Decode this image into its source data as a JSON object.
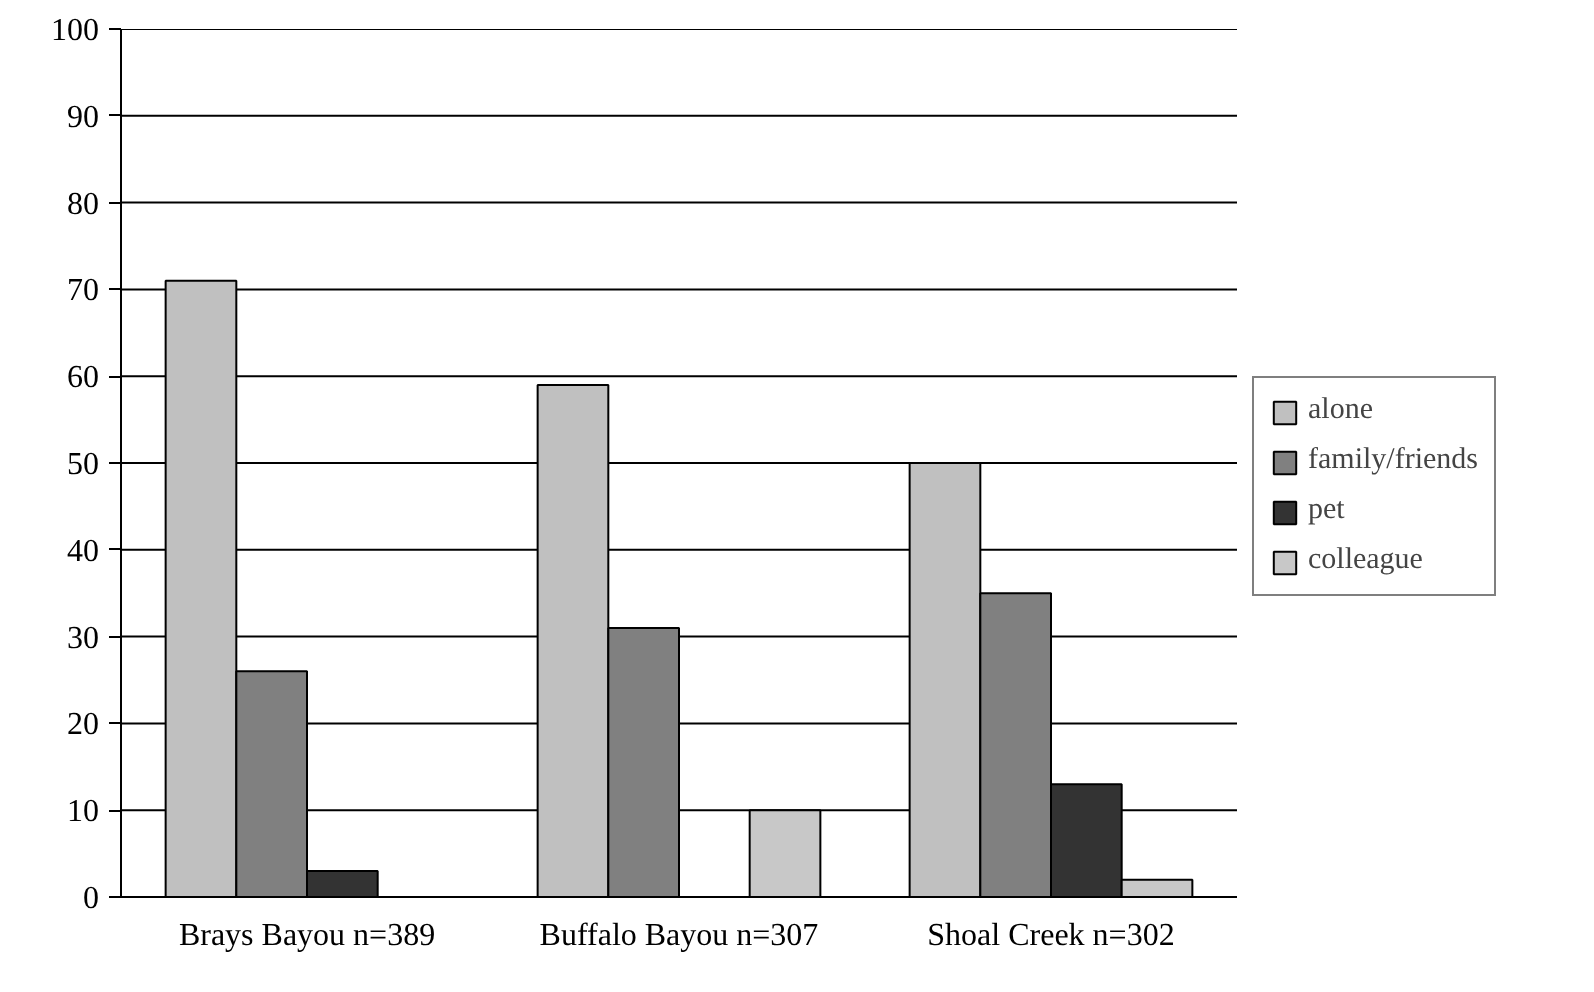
{
  "chart_data": {
    "type": "bar",
    "categories": [
      "Brays Bayou n=389",
      "Buffalo Bayou n=307",
      "Shoal Creek n=302"
    ],
    "series": [
      {
        "name": "alone",
        "color": "#c0c0c0",
        "values": [
          71,
          59,
          50
        ]
      },
      {
        "name": "family/friends",
        "color": "#808080",
        "values": [
          26,
          31,
          35
        ]
      },
      {
        "name": "pet",
        "color": "#333333",
        "values": [
          3,
          null,
          13
        ]
      },
      {
        "name": "colleague",
        "color": "#c8c8c8",
        "values": [
          null,
          10,
          2
        ]
      }
    ],
    "ylim": [
      0,
      100
    ],
    "yticks": [
      0,
      10,
      20,
      30,
      40,
      50,
      60,
      70,
      80,
      90,
      100
    ],
    "grid": "y",
    "legend": "right"
  }
}
